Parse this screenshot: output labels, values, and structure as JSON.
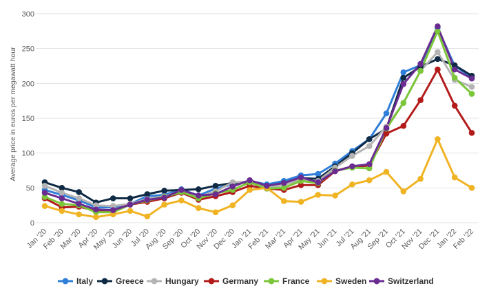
{
  "chart_data": {
    "type": "line",
    "title": "",
    "xlabel": "",
    "ylabel": "Average price in euros per megawatt hour",
    "ylim": [
      0,
      300
    ],
    "yticks": [
      "0",
      "50",
      "100",
      "150",
      "200",
      "250",
      "300"
    ],
    "grid": true,
    "legend_position": "bottom",
    "categories": [
      "Jan '20",
      "Feb '20",
      "Mar '20",
      "Apr '20",
      "May '20",
      "Jun '20",
      "Jul '20",
      "Aug '20",
      "Sep '20",
      "Oct '20",
      "Nov '20",
      "Dec '20",
      "Jan '21",
      "Feb '21",
      "Mar '21",
      "Apr '21",
      "May '21",
      "Jun '21",
      "Jul '21",
      "Aug '21",
      "Sep '21",
      "Oct '21",
      "Nov '21",
      "Dec '21",
      "Jan '22",
      "Feb '22"
    ],
    "series": [
      {
        "name": "Italy",
        "color": "#2f7ed8",
        "values": [
          47,
          40,
          32,
          22,
          22,
          27,
          38,
          40,
          48,
          39,
          49,
          55,
          60,
          55,
          60,
          68,
          70,
          85,
          103,
          120,
          157,
          216,
          226,
          280,
          225,
          209
        ]
      },
      {
        "name": "Greece",
        "color": "#0f2a44",
        "values": [
          58,
          50,
          44,
          29,
          35,
          35,
          41,
          46,
          47,
          48,
          53,
          57,
          58,
          53,
          57,
          64,
          63,
          81,
          100,
          120,
          135,
          208,
          224,
          235,
          226,
          211
        ]
      },
      {
        "name": "Hungary",
        "color": "#b4b4b4",
        "values": [
          53,
          43,
          35,
          25,
          24,
          27,
          34,
          38,
          45,
          37,
          45,
          58,
          59,
          50,
          54,
          62,
          60,
          79,
          96,
          110,
          138,
          172,
          218,
          245,
          205,
          195
        ]
      },
      {
        "name": "Germany",
        "color": "#b31b1b",
        "values": [
          35,
          22,
          23,
          17,
          18,
          26,
          30,
          35,
          43,
          33,
          38,
          44,
          53,
          49,
          47,
          54,
          54,
          74,
          80,
          82,
          128,
          139,
          176,
          220,
          168,
          129
        ]
      },
      {
        "name": "France",
        "color": "#7cc63a",
        "values": [
          37,
          27,
          25,
          15,
          15,
          26,
          32,
          37,
          44,
          35,
          42,
          47,
          58,
          49,
          50,
          60,
          57,
          75,
          79,
          78,
          135,
          172,
          218,
          275,
          208,
          185
        ]
      },
      {
        "name": "Sweden",
        "color": "#f0b323",
        "values": [
          24,
          17,
          12,
          8,
          12,
          17,
          9,
          26,
          32,
          21,
          15,
          25,
          47,
          50,
          31,
          30,
          40,
          39,
          55,
          61,
          73,
          45,
          63,
          120,
          65,
          50
        ]
      },
      {
        "name": "Switzerland",
        "color": "#6a2c91",
        "values": [
          43,
          35,
          27,
          19,
          18,
          26,
          33,
          36,
          47,
          39,
          41,
          52,
          61,
          53,
          57,
          65,
          58,
          74,
          81,
          84,
          136,
          199,
          228,
          282,
          220,
          207
        ]
      }
    ]
  }
}
